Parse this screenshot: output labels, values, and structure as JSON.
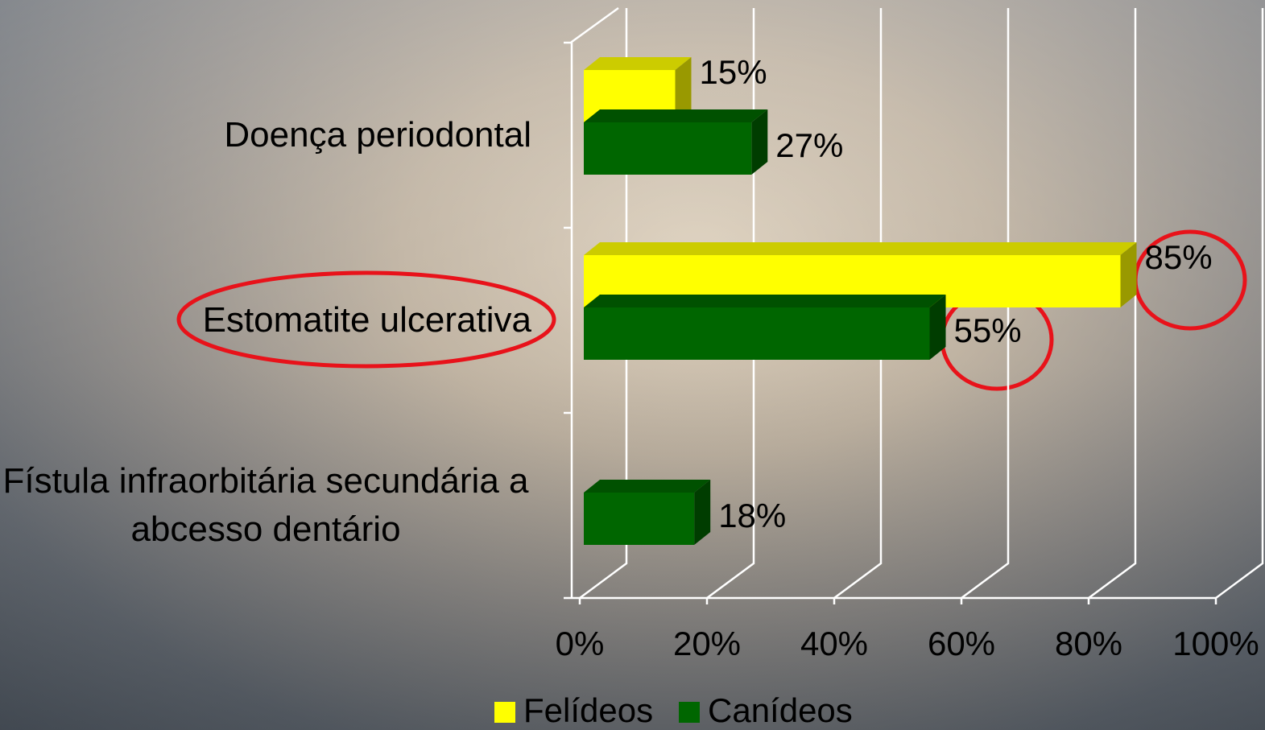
{
  "chart_data": {
    "type": "bar",
    "orientation": "horizontal",
    "three_d": true,
    "categories": [
      "Doença periodontal",
      "Estomatite ulcerativa",
      "Fístula infraorbitária secundária a abcesso dentário"
    ],
    "series": [
      {
        "name": "Felídeos",
        "color": "#ffff00",
        "values": [
          15,
          85,
          null
        ],
        "value_labels": [
          "15%",
          "85%",
          null
        ]
      },
      {
        "name": "Canídeos",
        "color": "#006600",
        "values": [
          27,
          55,
          18
        ],
        "value_labels": [
          "27%",
          "55%",
          "18%"
        ]
      }
    ],
    "xlim": [
      0,
      100
    ],
    "xticks": [
      {
        "value": 0,
        "label": "0%"
      },
      {
        "value": 20,
        "label": "20%"
      },
      {
        "value": 40,
        "label": "40%"
      },
      {
        "value": 60,
        "label": "60%"
      },
      {
        "value": 80,
        "label": "80%"
      },
      {
        "value": 100,
        "label": "100%"
      }
    ],
    "grid": true,
    "legend": "bottom"
  }
}
